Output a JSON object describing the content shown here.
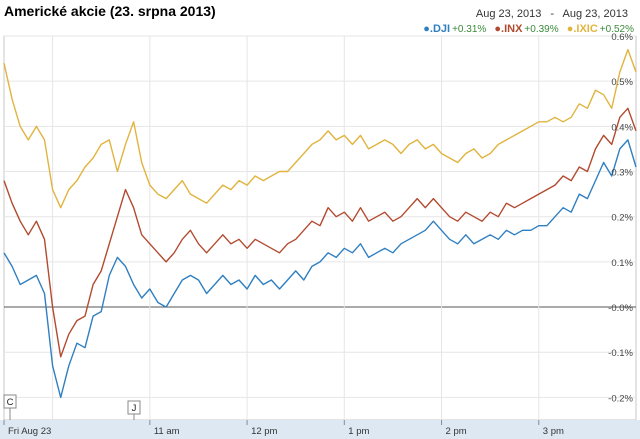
{
  "title": "Americké akcie (23. srpna 2013)",
  "date_range": {
    "start": "Aug 23, 2013",
    "separator": "-",
    "end": "Aug 23, 2013"
  },
  "legend": [
    {
      "symbol": ".DJI",
      "change": "+0.31%",
      "color": "#2f7fc1"
    },
    {
      "symbol": ".INX",
      "change": "+0.39%",
      "color": "#b24a2f"
    },
    {
      "symbol": ".IXIC",
      "change": "+0.52%",
      "color": "#e0b43e"
    }
  ],
  "markers": [
    "C",
    "J"
  ],
  "chart_data": {
    "type": "line",
    "title": "Americké akcie (23. srpna 2013)",
    "x_ticks": [
      "Fri Aug 23",
      "11 am",
      "12 pm",
      "1 pm",
      "2 pm",
      "3 pm"
    ],
    "y_ticks": [
      "0.6%",
      "0.5%",
      "0.4%",
      "0.3%",
      "0.2%",
      "0.1%",
      "-0.0%",
      "-0.1%",
      "-0.2%"
    ],
    "ylim": [
      -0.25,
      0.6
    ],
    "x_start": "9:30 am",
    "x_end": "4:00 pm",
    "series": [
      {
        "name": ".DJI",
        "color": "#2f7fc1",
        "points": [
          [
            "9:30",
            0.12
          ],
          [
            "9:35",
            0.09
          ],
          [
            "9:40",
            0.05
          ],
          [
            "9:45",
            0.06
          ],
          [
            "9:50",
            0.07
          ],
          [
            "9:55",
            0.03
          ],
          [
            "10:00",
            -0.13
          ],
          [
            "10:05",
            -0.2
          ],
          [
            "10:10",
            -0.13
          ],
          [
            "10:15",
            -0.08
          ],
          [
            "10:20",
            -0.09
          ],
          [
            "10:25",
            -0.02
          ],
          [
            "10:30",
            -0.01
          ],
          [
            "10:35",
            0.07
          ],
          [
            "10:40",
            0.11
          ],
          [
            "10:45",
            0.09
          ],
          [
            "10:50",
            0.05
          ],
          [
            "10:55",
            0.02
          ],
          [
            "11:00",
            0.04
          ],
          [
            "11:05",
            0.01
          ],
          [
            "11:10",
            0.0
          ],
          [
            "11:15",
            0.03
          ],
          [
            "11:20",
            0.06
          ],
          [
            "11:25",
            0.07
          ],
          [
            "11:30",
            0.06
          ],
          [
            "11:35",
            0.03
          ],
          [
            "11:40",
            0.05
          ],
          [
            "11:45",
            0.07
          ],
          [
            "11:50",
            0.05
          ],
          [
            "11:55",
            0.06
          ],
          [
            "12:00",
            0.04
          ],
          [
            "12:05",
            0.07
          ],
          [
            "12:10",
            0.05
          ],
          [
            "12:15",
            0.06
          ],
          [
            "12:20",
            0.04
          ],
          [
            "12:25",
            0.06
          ],
          [
            "12:30",
            0.08
          ],
          [
            "12:35",
            0.06
          ],
          [
            "12:40",
            0.09
          ],
          [
            "12:45",
            0.1
          ],
          [
            "12:50",
            0.12
          ],
          [
            "12:55",
            0.11
          ],
          [
            "13:00",
            0.13
          ],
          [
            "13:05",
            0.12
          ],
          [
            "13:10",
            0.14
          ],
          [
            "13:15",
            0.11
          ],
          [
            "13:20",
            0.12
          ],
          [
            "13:25",
            0.13
          ],
          [
            "13:30",
            0.12
          ],
          [
            "13:35",
            0.14
          ],
          [
            "13:40",
            0.15
          ],
          [
            "13:45",
            0.16
          ],
          [
            "13:50",
            0.17
          ],
          [
            "13:55",
            0.19
          ],
          [
            "14:00",
            0.17
          ],
          [
            "14:05",
            0.15
          ],
          [
            "14:10",
            0.14
          ],
          [
            "14:15",
            0.16
          ],
          [
            "14:20",
            0.14
          ],
          [
            "14:25",
            0.15
          ],
          [
            "14:30",
            0.16
          ],
          [
            "14:35",
            0.15
          ],
          [
            "14:40",
            0.17
          ],
          [
            "14:45",
            0.16
          ],
          [
            "14:50",
            0.17
          ],
          [
            "14:55",
            0.17
          ],
          [
            "15:00",
            0.18
          ],
          [
            "15:05",
            0.18
          ],
          [
            "15:10",
            0.2
          ],
          [
            "15:15",
            0.22
          ],
          [
            "15:20",
            0.21
          ],
          [
            "15:25",
            0.25
          ],
          [
            "15:30",
            0.24
          ],
          [
            "15:35",
            0.28
          ],
          [
            "15:40",
            0.32
          ],
          [
            "15:45",
            0.29
          ],
          [
            "15:50",
            0.35
          ],
          [
            "15:55",
            0.37
          ],
          [
            "16:00",
            0.31
          ]
        ]
      },
      {
        "name": ".INX",
        "color": "#b24a2f",
        "points": [
          [
            "9:30",
            0.28
          ],
          [
            "9:35",
            0.23
          ],
          [
            "9:40",
            0.19
          ],
          [
            "9:45",
            0.16
          ],
          [
            "9:50",
            0.19
          ],
          [
            "9:55",
            0.15
          ],
          [
            "10:00",
            0.0
          ],
          [
            "10:05",
            -0.11
          ],
          [
            "10:10",
            -0.06
          ],
          [
            "10:15",
            -0.03
          ],
          [
            "10:20",
            -0.02
          ],
          [
            "10:25",
            0.05
          ],
          [
            "10:30",
            0.08
          ],
          [
            "10:35",
            0.14
          ],
          [
            "10:40",
            0.2
          ],
          [
            "10:45",
            0.26
          ],
          [
            "10:50",
            0.22
          ],
          [
            "10:55",
            0.16
          ],
          [
            "11:00",
            0.14
          ],
          [
            "11:05",
            0.12
          ],
          [
            "11:10",
            0.1
          ],
          [
            "11:15",
            0.12
          ],
          [
            "11:20",
            0.15
          ],
          [
            "11:25",
            0.17
          ],
          [
            "11:30",
            0.14
          ],
          [
            "11:35",
            0.12
          ],
          [
            "11:40",
            0.14
          ],
          [
            "11:45",
            0.16
          ],
          [
            "11:50",
            0.14
          ],
          [
            "11:55",
            0.15
          ],
          [
            "12:00",
            0.13
          ],
          [
            "12:05",
            0.15
          ],
          [
            "12:10",
            0.14
          ],
          [
            "12:15",
            0.13
          ],
          [
            "12:20",
            0.12
          ],
          [
            "12:25",
            0.14
          ],
          [
            "12:30",
            0.15
          ],
          [
            "12:35",
            0.17
          ],
          [
            "12:40",
            0.19
          ],
          [
            "12:45",
            0.18
          ],
          [
            "12:50",
            0.22
          ],
          [
            "12:55",
            0.2
          ],
          [
            "13:00",
            0.21
          ],
          [
            "13:05",
            0.19
          ],
          [
            "13:10",
            0.22
          ],
          [
            "13:15",
            0.19
          ],
          [
            "13:20",
            0.2
          ],
          [
            "13:25",
            0.21
          ],
          [
            "13:30",
            0.19
          ],
          [
            "13:35",
            0.2
          ],
          [
            "13:40",
            0.22
          ],
          [
            "13:45",
            0.24
          ],
          [
            "13:50",
            0.22
          ],
          [
            "13:55",
            0.24
          ],
          [
            "14:00",
            0.22
          ],
          [
            "14:05",
            0.2
          ],
          [
            "14:10",
            0.19
          ],
          [
            "14:15",
            0.21
          ],
          [
            "14:20",
            0.2
          ],
          [
            "14:25",
            0.19
          ],
          [
            "14:30",
            0.21
          ],
          [
            "14:35",
            0.2
          ],
          [
            "14:40",
            0.23
          ],
          [
            "14:45",
            0.22
          ],
          [
            "14:50",
            0.23
          ],
          [
            "14:55",
            0.24
          ],
          [
            "15:00",
            0.25
          ],
          [
            "15:05",
            0.26
          ],
          [
            "15:10",
            0.27
          ],
          [
            "15:15",
            0.29
          ],
          [
            "15:20",
            0.28
          ],
          [
            "15:25",
            0.31
          ],
          [
            "15:30",
            0.3
          ],
          [
            "15:35",
            0.35
          ],
          [
            "15:40",
            0.38
          ],
          [
            "15:45",
            0.36
          ],
          [
            "15:50",
            0.42
          ],
          [
            "15:55",
            0.44
          ],
          [
            "16:00",
            0.39
          ]
        ]
      },
      {
        "name": ".IXIC",
        "color": "#e0b43e",
        "points": [
          [
            "9:30",
            0.54
          ],
          [
            "9:35",
            0.46
          ],
          [
            "9:40",
            0.4
          ],
          [
            "9:45",
            0.37
          ],
          [
            "9:50",
            0.4
          ],
          [
            "9:55",
            0.37
          ],
          [
            "10:00",
            0.26
          ],
          [
            "10:05",
            0.22
          ],
          [
            "10:10",
            0.26
          ],
          [
            "10:15",
            0.28
          ],
          [
            "10:20",
            0.31
          ],
          [
            "10:25",
            0.33
          ],
          [
            "10:30",
            0.36
          ],
          [
            "10:35",
            0.37
          ],
          [
            "10:40",
            0.3
          ],
          [
            "10:45",
            0.36
          ],
          [
            "10:50",
            0.41
          ],
          [
            "10:55",
            0.32
          ],
          [
            "11:00",
            0.27
          ],
          [
            "11:05",
            0.25
          ],
          [
            "11:10",
            0.24
          ],
          [
            "11:15",
            0.26
          ],
          [
            "11:20",
            0.28
          ],
          [
            "11:25",
            0.25
          ],
          [
            "11:30",
            0.24
          ],
          [
            "11:35",
            0.23
          ],
          [
            "11:40",
            0.25
          ],
          [
            "11:45",
            0.27
          ],
          [
            "11:50",
            0.26
          ],
          [
            "11:55",
            0.28
          ],
          [
            "12:00",
            0.27
          ],
          [
            "12:05",
            0.29
          ],
          [
            "12:10",
            0.28
          ],
          [
            "12:15",
            0.29
          ],
          [
            "12:20",
            0.3
          ],
          [
            "12:25",
            0.3
          ],
          [
            "12:30",
            0.32
          ],
          [
            "12:35",
            0.34
          ],
          [
            "12:40",
            0.36
          ],
          [
            "12:45",
            0.37
          ],
          [
            "12:50",
            0.39
          ],
          [
            "12:55",
            0.37
          ],
          [
            "13:00",
            0.38
          ],
          [
            "13:05",
            0.36
          ],
          [
            "13:10",
            0.38
          ],
          [
            "13:15",
            0.35
          ],
          [
            "13:20",
            0.36
          ],
          [
            "13:25",
            0.37
          ],
          [
            "13:30",
            0.36
          ],
          [
            "13:35",
            0.34
          ],
          [
            "13:40",
            0.36
          ],
          [
            "13:45",
            0.37
          ],
          [
            "13:50",
            0.35
          ],
          [
            "13:55",
            0.36
          ],
          [
            "14:00",
            0.34
          ],
          [
            "14:05",
            0.33
          ],
          [
            "14:10",
            0.32
          ],
          [
            "14:15",
            0.34
          ],
          [
            "14:20",
            0.35
          ],
          [
            "14:25",
            0.33
          ],
          [
            "14:30",
            0.34
          ],
          [
            "14:35",
            0.36
          ],
          [
            "14:40",
            0.37
          ],
          [
            "14:45",
            0.38
          ],
          [
            "14:50",
            0.39
          ],
          [
            "14:55",
            0.4
          ],
          [
            "15:00",
            0.41
          ],
          [
            "15:05",
            0.41
          ],
          [
            "15:10",
            0.42
          ],
          [
            "15:15",
            0.41
          ],
          [
            "15:20",
            0.42
          ],
          [
            "15:25",
            0.45
          ],
          [
            "15:30",
            0.44
          ],
          [
            "15:35",
            0.48
          ],
          [
            "15:40",
            0.47
          ],
          [
            "15:45",
            0.44
          ],
          [
            "15:50",
            0.52
          ],
          [
            "15:55",
            0.57
          ],
          [
            "16:00",
            0.52
          ]
        ]
      }
    ],
    "grid": true,
    "legend_placement": "top-right"
  }
}
